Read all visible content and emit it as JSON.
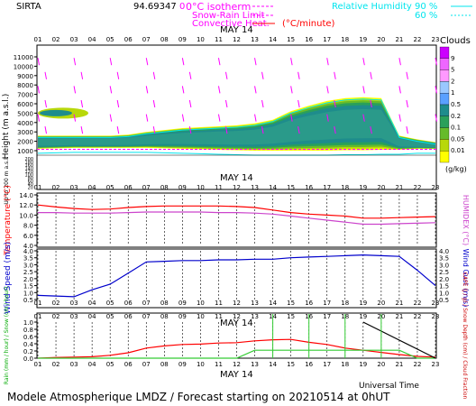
{
  "header": {
    "station": "SIRTA",
    "coords": "94.69347",
    "zero_label": "0",
    "legend_isotherm": "0°C isotherm",
    "legend_snowrain": "Snow-Rain Limit",
    "legend_convective": "Convective Heat.",
    "legend_convective_unit": "(°C/minute)",
    "rh_label": "Relative Humidity",
    "rh_90": "90 %",
    "rh_60": "60 %",
    "colors": {
      "magenta": "#ff00ff",
      "red": "#ff0000",
      "cyan": "#00e5ee"
    }
  },
  "footer": "Modele Atmospherique LMDZ / Forecast starting on 20210514 at 0hUT",
  "universal_time": "Universal Time",
  "chart_data": [
    {
      "type": "heatmap",
      "panel": "clouds",
      "date_label": "MAY 14",
      "hour_labels": [
        "01",
        "02",
        "03",
        "04",
        "05",
        "06",
        "07",
        "08",
        "09",
        "10",
        "11",
        "12",
        "13",
        "14",
        "15",
        "16",
        "17",
        "18",
        "19",
        "20",
        "21",
        "22",
        "23"
      ],
      "ylabel": "Height (m a.s.l.)",
      "ylabel2": "Up to 200 m a.s.l.",
      "yticks_upper": [
        "11000",
        "10000",
        "9000",
        "8000",
        "7000",
        "6000",
        "5000",
        "4000",
        "3000",
        "2000",
        "1000"
      ],
      "yticks_lower": [
        "200",
        "180",
        "160",
        "140",
        "120",
        "100",
        "80",
        "60",
        "40",
        "20"
      ],
      "colorbar_title": "Clouds",
      "colorbar_unit": "(g/kg)",
      "colorbar_labels": [
        "9",
        "5",
        "2",
        "1",
        "0.5",
        "0.2",
        "0.1",
        "0.05",
        "0.01"
      ],
      "colorbar_colors": [
        "#cc00ff",
        "#ee66ff",
        "#ff99ff",
        "#9ac8ff",
        "#5aa0ff",
        "#1e8c8c",
        "#2aa05a",
        "#66bb2a",
        "#b8d80a",
        "#ffff00"
      ],
      "cloud_top_m": [
        2600,
        2600,
        2600,
        2600,
        2600,
        2700,
        3000,
        3200,
        3400,
        3500,
        3600,
        3700,
        3900,
        4300,
        5200,
        5800,
        6300,
        6600,
        6700,
        6600,
        2600,
        2200,
        1900
      ],
      "cloud_base_m": [
        1200,
        1250,
        1300,
        1300,
        1300,
        1300,
        1300,
        1250,
        1200,
        1150,
        1100,
        1050,
        1000,
        1000,
        1000,
        1000,
        1000,
        1050,
        1050,
        1100,
        1100,
        1200,
        1200
      ]
    },
    {
      "type": "line",
      "panel": "temperature",
      "x": [
        "01",
        "02",
        "03",
        "04",
        "05",
        "06",
        "07",
        "08",
        "09",
        "10",
        "11",
        "12",
        "13",
        "14",
        "15",
        "16",
        "17",
        "18",
        "19",
        "20",
        "21",
        "22",
        "23"
      ],
      "ylabel": "Temperature (°C)",
      "ylabel_right": "HUMIDEX (°C)",
      "yticks": [
        "14.0",
        "12.0",
        "10.0",
        "8.0",
        "6.0",
        "4.0"
      ],
      "ylim": [
        4,
        14
      ],
      "series": [
        {
          "color": "#ff0000",
          "values": [
            12.0,
            11.6,
            11.3,
            11.1,
            11.2,
            11.5,
            11.7,
            11.8,
            11.8,
            11.8,
            11.8,
            11.7,
            11.5,
            11.0,
            10.5,
            10.2,
            10.0,
            9.8,
            9.4,
            9.4,
            9.5,
            9.6,
            9.7
          ]
        },
        {
          "color": "#cc44cc",
          "values": [
            10.5,
            10.5,
            10.4,
            10.4,
            10.4,
            10.5,
            10.6,
            10.6,
            10.6,
            10.6,
            10.5,
            10.5,
            10.4,
            10.2,
            9.8,
            9.4,
            9.0,
            8.6,
            8.2,
            8.2,
            8.3,
            8.4,
            8.5
          ]
        }
      ]
    },
    {
      "type": "line",
      "panel": "wind",
      "x": [
        "01",
        "02",
        "03",
        "04",
        "05",
        "06",
        "07",
        "08",
        "09",
        "10",
        "11",
        "12",
        "13",
        "14",
        "15",
        "16",
        "17",
        "18",
        "19",
        "20",
        "21",
        "22",
        "23"
      ],
      "ylabel": "Wind Speed (m/s)",
      "ylabel_right": "Wind Gust (m/s)",
      "yticks": [
        "4.0",
        "3.5",
        "3.0",
        "2.5",
        "2.0",
        "1.5",
        "1.0",
        "0.5"
      ],
      "ylim": [
        0.5,
        4.0
      ],
      "series": [
        {
          "color": "#0000cc",
          "values": [
            0.8,
            0.75,
            0.7,
            1.2,
            1.6,
            2.4,
            3.2,
            3.25,
            3.3,
            3.3,
            3.35,
            3.35,
            3.4,
            3.4,
            3.5,
            3.55,
            3.6,
            3.65,
            3.7,
            3.65,
            3.6,
            2.6,
            1.5
          ]
        }
      ]
    },
    {
      "type": "line",
      "panel": "precipitation",
      "date_label": "MAY 14",
      "x": [
        "01",
        "02",
        "03",
        "04",
        "05",
        "06",
        "07",
        "08",
        "09",
        "10",
        "11",
        "12",
        "13",
        "14",
        "15",
        "16",
        "17",
        "18",
        "19",
        "20",
        "21",
        "22",
        "23"
      ],
      "ylabel_left": "Rain (mm / hour) / Snow (cm / hour)",
      "ylabel_right": "CAPE (J / g) / Snow Depth (cm) / Cloud Fraction",
      "yticks": [
        "1.0",
        "0.8",
        "0.6",
        "0.4",
        "0.2",
        "0.0"
      ],
      "ylim": [
        0,
        1.0
      ],
      "series": [
        {
          "color": "#ff0000",
          "values": [
            0.0,
            0.02,
            0.03,
            0.04,
            0.08,
            0.15,
            0.28,
            0.34,
            0.38,
            0.39,
            0.42,
            0.43,
            0.48,
            0.51,
            0.52,
            0.44,
            0.38,
            0.28,
            0.22,
            0.16,
            0.1,
            0.05,
            0.03
          ]
        },
        {
          "color": "#33cc33",
          "values": [
            0,
            0,
            0,
            0,
            0,
            0,
            0,
            0,
            0,
            0,
            0,
            0,
            0.22,
            0.22,
            0.22,
            0.22,
            0.22,
            0.22,
            0.22,
            0.22,
            0.22,
            0,
            0
          ]
        },
        {
          "color": "#000000",
          "values": [
            null,
            null,
            null,
            null,
            null,
            null,
            null,
            null,
            null,
            null,
            null,
            null,
            null,
            null,
            null,
            null,
            null,
            null,
            1.0,
            0.75,
            0.5,
            0.25,
            0.0
          ]
        }
      ]
    }
  ]
}
